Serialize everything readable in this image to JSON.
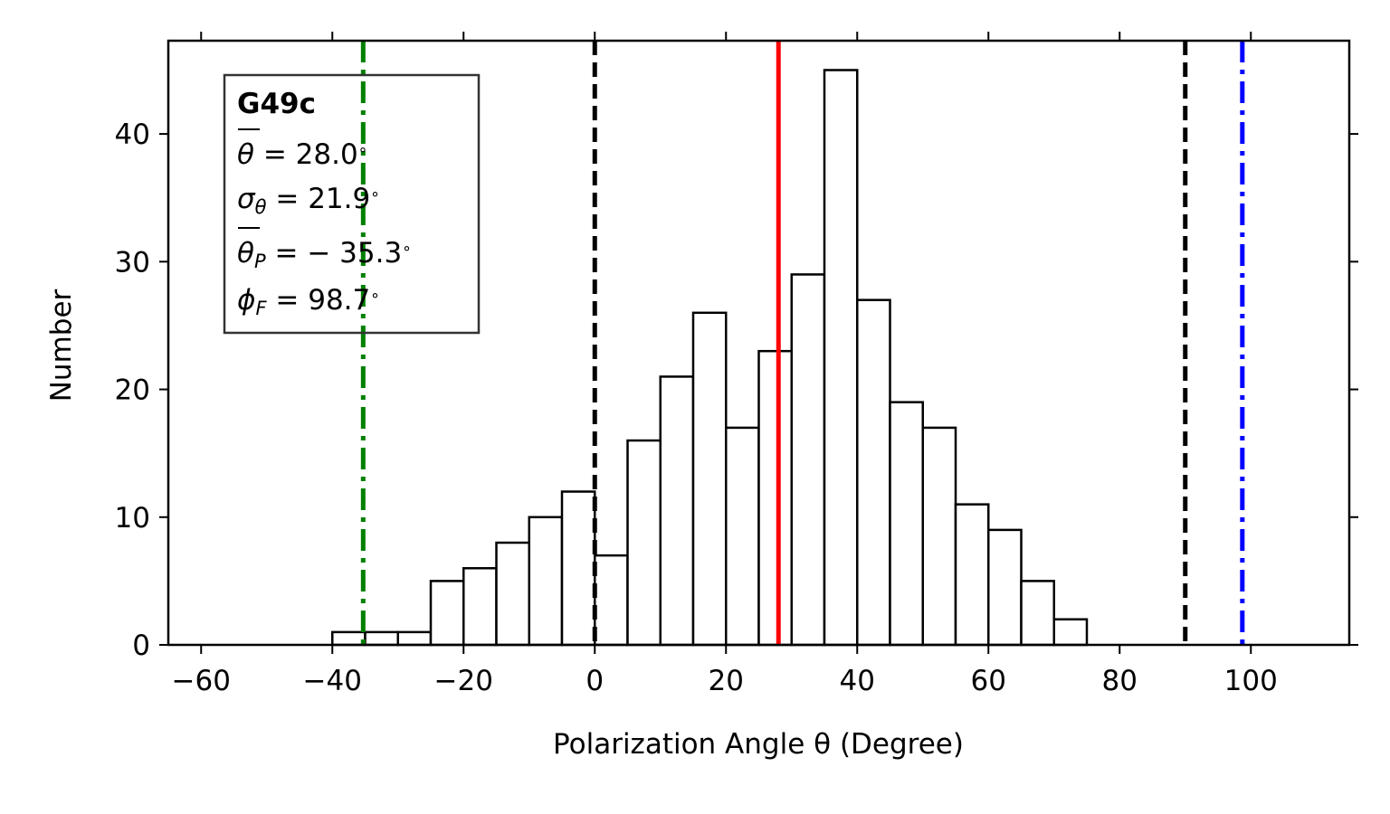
{
  "chart_data": {
    "type": "bar",
    "subtype": "histogram",
    "xlabel": "Polarization Angle θ (Degree)",
    "ylabel": "Number",
    "xlim": [
      -65,
      115
    ],
    "ylim": [
      0,
      47.3
    ],
    "xticks": [
      -60,
      -40,
      -20,
      0,
      20,
      40,
      60,
      80,
      100
    ],
    "yticks": [
      0,
      10,
      20,
      30,
      40
    ],
    "bin_width": 5,
    "bins": [
      {
        "x0": -40,
        "x1": -35,
        "count": 1
      },
      {
        "x0": -35,
        "x1": -30,
        "count": 1
      },
      {
        "x0": -30,
        "x1": -25,
        "count": 1
      },
      {
        "x0": -25,
        "x1": -20,
        "count": 5
      },
      {
        "x0": -20,
        "x1": -15,
        "count": 6
      },
      {
        "x0": -15,
        "x1": -10,
        "count": 8
      },
      {
        "x0": -10,
        "x1": -5,
        "count": 10
      },
      {
        "x0": -5,
        "x1": 0,
        "count": 12
      },
      {
        "x0": 0,
        "x1": 5,
        "count": 7
      },
      {
        "x0": 5,
        "x1": 10,
        "count": 16
      },
      {
        "x0": 10,
        "x1": 15,
        "count": 21
      },
      {
        "x0": 15,
        "x1": 20,
        "count": 26
      },
      {
        "x0": 20,
        "x1": 25,
        "count": 17
      },
      {
        "x0": 25,
        "x1": 30,
        "count": 23
      },
      {
        "x0": 30,
        "x1": 35,
        "count": 29
      },
      {
        "x0": 35,
        "x1": 40,
        "count": 45
      },
      {
        "x0": 40,
        "x1": 45,
        "count": 27
      },
      {
        "x0": 45,
        "x1": 50,
        "count": 19
      },
      {
        "x0": 50,
        "x1": 55,
        "count": 17
      },
      {
        "x0": 55,
        "x1": 60,
        "count": 11
      },
      {
        "x0": 60,
        "x1": 65,
        "count": 9
      },
      {
        "x0": 65,
        "x1": 70,
        "count": 5
      },
      {
        "x0": 70,
        "x1": 75,
        "count": 2
      }
    ],
    "bar_fill": "#ffffff",
    "bar_edge": "#000000",
    "vlines": [
      {
        "x": -35.3,
        "color": "#008000",
        "style": "dashdot"
      },
      {
        "x": 0,
        "color": "#000000",
        "style": "dashed"
      },
      {
        "x": 28.0,
        "color": "#ff0000",
        "style": "solid"
      },
      {
        "x": 90,
        "color": "#000000",
        "style": "dashed"
      },
      {
        "x": 98.7,
        "color": "#0000ff",
        "style": "dashdot"
      }
    ],
    "annotation": {
      "title": "G49c",
      "theta_sym": "θ",
      "theta_val": " = 28.0",
      "sigma_sym": "σ",
      "sigma_sub": "θ",
      "sigma_val": " = 21.9",
      "thetaP_sym": "θ",
      "thetaP_sub": "P",
      "thetaP_val": " = − 35.3",
      "phi_sym": "ϕ",
      "phi_sub": "F",
      "phi_val": " = 98.7",
      "degree": "∘"
    }
  }
}
